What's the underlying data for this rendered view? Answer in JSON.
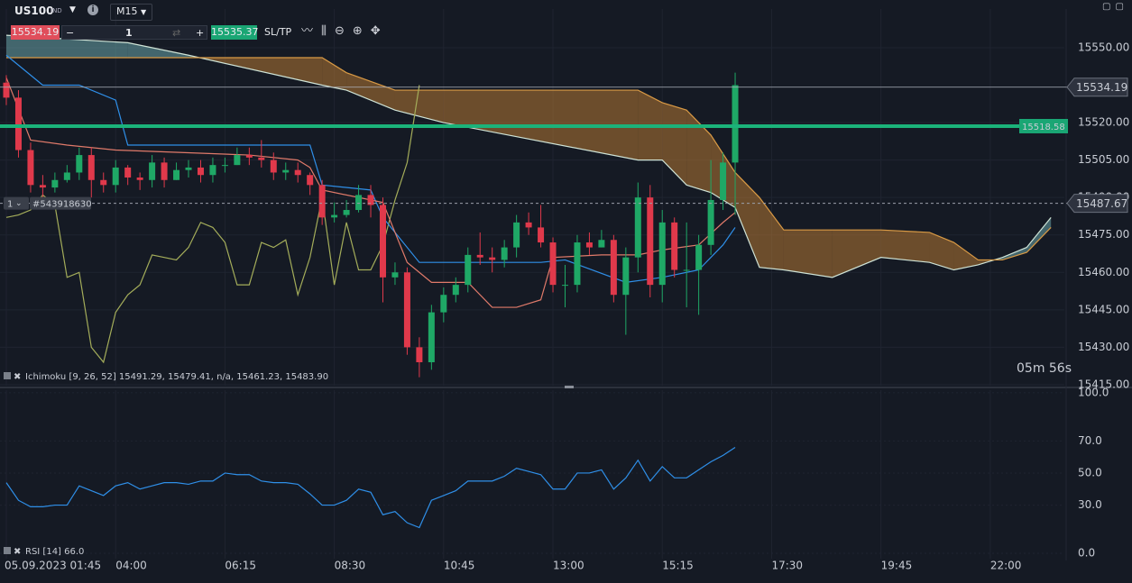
{
  "toolbar": {
    "symbol": "US100",
    "symbol_type": "IND",
    "timeframe": "M15",
    "sell_price": 15534.19,
    "quantity": 1,
    "buy_price": 15535.37,
    "sltp": "SL/TP"
  },
  "chart_data": [
    {
      "type": "candlestick",
      "indicator_label": "Ichimoku [9, 26, 52] 15491.29, 15479.41, n/a, 15461.23, 15483.90",
      "countdown": "05m 56s",
      "xlim": [
        -0.52,
        87.1
      ],
      "ylim": [
        15413.9,
        15565.5
      ],
      "yticks": [
        {
          "value": 15550,
          "label": "15550.00"
        },
        {
          "value": 15520,
          "label": "15520.00"
        },
        {
          "value": 15505,
          "label": "15505.00"
        },
        {
          "value": 15490,
          "label": "15490.00"
        },
        {
          "value": 15475,
          "label": "15475.00"
        },
        {
          "value": 15460,
          "label": "15460.00"
        },
        {
          "value": 15445,
          "label": "15445.00"
        },
        {
          "value": 15430,
          "label": "15430.00"
        },
        {
          "value": 15415,
          "label": "15415.00"
        }
      ],
      "up_color": "#1fa866",
      "down_color": "#e0394b",
      "open": [
        15536,
        15530,
        15509,
        15495,
        15494,
        15497,
        15500,
        15507,
        15497,
        15495,
        15502,
        15498,
        15497,
        15504,
        15497,
        15501,
        15502,
        15499,
        15503,
        15503,
        15507,
        15506,
        15505,
        15500,
        15501,
        15499,
        15495,
        15482,
        15483,
        15485,
        15491,
        15487,
        15458,
        15460,
        15430,
        15424,
        15444,
        15451,
        15455,
        15467,
        15466,
        15465,
        15470,
        15480,
        15478,
        15472,
        15455,
        15455,
        15472,
        15470,
        15473,
        15451,
        15466,
        15490,
        15455,
        15480,
        15461,
        15461,
        15471,
        15489,
        15504
      ],
      "high": [
        15539,
        15533,
        15512,
        15499,
        15500,
        15503,
        15510,
        15510,
        15500,
        15505,
        15503,
        15500,
        15507,
        15506,
        15504,
        15505,
        15505,
        15506,
        15506,
        15510,
        15510,
        15513,
        15508,
        15504,
        15504,
        15500,
        15497,
        15488,
        15489,
        15495,
        15495,
        15490,
        15464,
        15462,
        15434,
        15447,
        15454,
        15458,
        15470,
        15476,
        15470,
        15473,
        15483,
        15484,
        15487,
        15474,
        15463,
        15475,
        15476,
        15477,
        15475,
        15470,
        15496,
        15495,
        15485,
        15482,
        15480,
        15475,
        15505,
        15508,
        15540
      ],
      "low": [
        15527,
        15506,
        15492,
        15489,
        15492,
        15496,
        15497,
        15490,
        15492,
        15492,
        15495,
        15493,
        15494,
        15494,
        15497,
        15498,
        15496,
        15496,
        15500,
        15503,
        15503,
        15502,
        15497,
        15497,
        15496,
        15491,
        15479,
        15480,
        15482,
        15484,
        15482,
        15448,
        15455,
        15427,
        15418,
        15421,
        15440,
        15448,
        15452,
        15463,
        15460,
        15462,
        15466,
        15475,
        15470,
        15452,
        15446,
        15452,
        15467,
        15470,
        15448,
        15435,
        15460,
        15450,
        15448,
        15458,
        15446,
        15443,
        15467,
        15485,
        15483
      ],
      "close": [
        15530,
        15509,
        15495,
        15494,
        15497,
        15500,
        15507,
        15497,
        15495,
        15502,
        15498,
        15497,
        15504,
        15497,
        15501,
        15502,
        15499,
        15503,
        15503,
        15507,
        15506,
        15505,
        15500,
        15501,
        15499,
        15495,
        15482,
        15483,
        15485,
        15491,
        15487,
        15458,
        15460,
        15430,
        15424,
        15444,
        15451,
        15455,
        15467,
        15466,
        15465,
        15470,
        15480,
        15478,
        15472,
        15455,
        15455,
        15472,
        15470,
        15473,
        15451,
        15466,
        15490,
        15455,
        15480,
        15461,
        15461,
        15471,
        15489,
        15504,
        15535
      ],
      "tenkan": {
        "color": "#2f8fe8",
        "x": [
          0,
          3,
          6,
          9,
          10,
          25,
          26,
          30,
          31,
          34,
          44,
          46,
          51,
          54,
          57,
          59,
          60
        ],
        "values": [
          15547,
          15535,
          15535,
          15529,
          15511,
          15511,
          15495,
          15493,
          15482,
          15464,
          15464,
          15465,
          15456,
          15458,
          15461,
          15471,
          15478
        ]
      },
      "kijun": {
        "color": "#e07a6a",
        "x": [
          0,
          2,
          5,
          9,
          20,
          24,
          25,
          26,
          31,
          33,
          35,
          38,
          40,
          42,
          44,
          45,
          49,
          52,
          54,
          57,
          59,
          60
        ],
        "values": [
          15538,
          15513,
          15511,
          15509,
          15507,
          15505,
          15502,
          15493,
          15488,
          15464,
          15456,
          15456,
          15446,
          15446,
          15449,
          15466,
          15467,
          15467,
          15469,
          15471,
          15480,
          15484
        ]
      },
      "chikou": {
        "color": "#a4ad5a",
        "shift": 26
      },
      "cloud": {
        "x": [
          0,
          10,
          15,
          26,
          28,
          32,
          36,
          52,
          54,
          56,
          58,
          60,
          62,
          64,
          68,
          72,
          76,
          78,
          80,
          82,
          84,
          86
        ],
        "span_a": [
          15555,
          15552,
          15547,
          15535,
          15533,
          15525,
          15520,
          15505,
          15505,
          15495,
          15492,
          15486,
          15462,
          15461,
          15458,
          15466,
          15464,
          15461,
          15463,
          15466,
          15470,
          15482
        ],
        "span_b": [
          15546,
          15546,
          15546,
          15546,
          15540,
          15533,
          15533,
          15533,
          15528,
          15525,
          15515,
          15500,
          15490,
          15477,
          15477,
          15477,
          15476,
          15472,
          15465,
          15465,
          15468,
          15478
        ],
        "span_a_color": "#cfe3d6",
        "span_b_color": "#d99a45",
        "bear_fill": "rgba(196,128,52,0.5)",
        "bull_fill": "rgba(105,165,170,0.55)"
      },
      "current_price": 15534.19,
      "order_line": 15518.58,
      "position": {
        "price": 15487.67,
        "quantity": 1,
        "ticket": "#543918630"
      }
    },
    {
      "type": "line",
      "indicator_label": "RSI [14] 66.0",
      "color": "#2f8fe8",
      "xlim": [
        -0.52,
        87.1
      ],
      "ylim": [
        -4.5,
        102.2
      ],
      "yticks": [
        {
          "value": 100,
          "label": "100.0"
        },
        {
          "value": 70,
          "label": "70.0"
        },
        {
          "value": 50,
          "label": "50.0"
        },
        {
          "value": 30,
          "label": "30.0"
        },
        {
          "value": 0,
          "label": "0.0"
        }
      ],
      "xticks": [
        {
          "value": 0,
          "label": "05.09.2023 01:45"
        },
        {
          "value": 9,
          "label": "04:00"
        },
        {
          "value": 18,
          "label": "06:15"
        },
        {
          "value": 27,
          "label": "08:30"
        },
        {
          "value": 36,
          "label": "10:45"
        },
        {
          "value": 45,
          "label": "13:00"
        },
        {
          "value": 54,
          "label": "15:15"
        },
        {
          "value": 63,
          "label": "17:30"
        },
        {
          "value": 72,
          "label": "19:45"
        },
        {
          "value": 81,
          "label": "22:00"
        }
      ],
      "values": [
        44,
        33,
        29,
        29,
        30,
        30,
        42,
        39,
        36,
        42,
        44,
        40,
        42,
        44,
        44,
        43,
        45,
        45,
        50,
        49,
        49,
        45,
        44,
        44,
        43,
        37,
        30,
        30,
        33,
        40,
        38,
        24,
        26,
        19,
        16,
        33,
        36,
        39,
        45,
        45,
        45,
        48,
        53,
        51,
        49,
        40,
        40,
        50,
        50,
        52,
        40,
        47,
        58,
        45,
        54,
        47,
        47,
        52,
        57,
        61,
        66
      ]
    }
  ]
}
